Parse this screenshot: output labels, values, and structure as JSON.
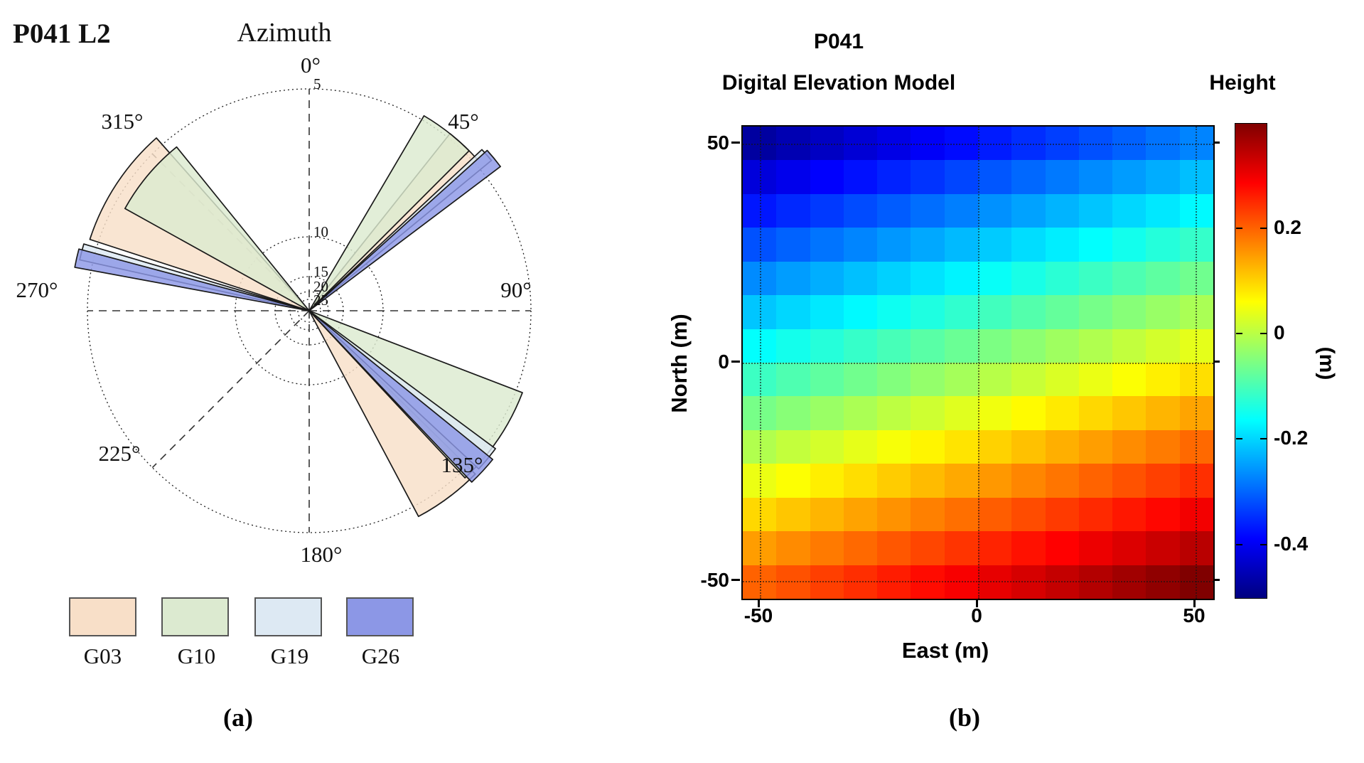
{
  "page": {
    "caption_a": "(a)",
    "caption_b": "(b)"
  },
  "panel_a": {
    "corner_label": "P041 L2",
    "title": "Azimuth",
    "azimuth_labels": [
      "0°",
      "45°",
      "90°",
      "135°",
      "180°",
      "225°",
      "270°",
      "315°"
    ],
    "radial_tick_labels": [
      "5",
      "10",
      "15",
      "20",
      "25"
    ],
    "legend": [
      {
        "label": "G03",
        "color": "#f8dfc8"
      },
      {
        "label": "G10",
        "color": "#dcead0"
      },
      {
        "label": "G19",
        "color": "#dde9f3"
      },
      {
        "label": "G26",
        "color": "#8c97e6"
      }
    ]
  },
  "panel_b": {
    "title_line1": "P041",
    "title_line2": "Digital Elevation Model",
    "colorbar_title": "Height",
    "colorbar_unit": "(m)",
    "xlabel": "East (m)",
    "ylabel": "North (m)",
    "x_tick_labels": [
      "-50",
      "0",
      "50"
    ],
    "y_tick_labels": [
      "50",
      "0",
      "-50"
    ],
    "colorbar_tick_labels": [
      "0.2",
      "0",
      "-0.2",
      "-0.4"
    ]
  },
  "chart_data": [
    {
      "id": "a",
      "type": "polar-sectors",
      "title": "Azimuth",
      "station": "P041 L2",
      "radial_rings": [
        {
          "value": 5,
          "radius_px": 312
        },
        {
          "value": 10,
          "radius_px": 104
        },
        {
          "value": 15,
          "radius_px": 48
        },
        {
          "value": 20,
          "radius_px": 27
        },
        {
          "value": 25,
          "radius_px": 16
        }
      ],
      "azimuth_ticks_deg": [
        0,
        45,
        90,
        135,
        180,
        225,
        270,
        315
      ],
      "series": [
        {
          "name": "G03",
          "color": "#f8dfc8",
          "sectors": [
            {
              "az_start": 288.0,
              "az_end": 318.5,
              "r_frac": 1.04
            },
            {
              "az_start": 38.5,
              "az_end": 48.0,
              "r_frac": 1.02
            },
            {
              "az_start": 134.5,
              "az_end": 152.0,
              "r_frac": 1.05
            }
          ]
        },
        {
          "name": "G10",
          "color": "#dcead0",
          "sectors": [
            {
              "az_start": 299.0,
              "az_end": 321.0,
              "r_frac": 0.95
            },
            {
              "az_start": 30.5,
              "az_end": 45.0,
              "r_frac": 1.02
            },
            {
              "az_start": 111.0,
              "az_end": 137.0,
              "r_frac": 1.03
            }
          ]
        },
        {
          "name": "G19",
          "color": "#dde9f3",
          "sectors": [
            {
              "az_start": 282.5,
              "az_end": 286.5,
              "r_frac": 1.06
            },
            {
              "az_start": 47.0,
              "az_end": 50.5,
              "r_frac": 1.065
            },
            {
              "az_start": 126.5,
              "az_end": 133.0,
              "r_frac": 1.045
            }
          ]
        },
        {
          "name": "G26",
          "color": "#8c97e6",
          "sectors": [
            {
              "az_start": 280.5,
              "az_end": 285.0,
              "r_frac": 1.075
            },
            {
              "az_start": 48.0,
              "az_end": 53.0,
              "r_frac": 1.08
            },
            {
              "az_start": 129.0,
              "az_end": 136.5,
              "r_frac": 1.065
            }
          ]
        }
      ]
    },
    {
      "id": "b",
      "type": "heatmap",
      "title": "P041 Digital Elevation Model",
      "xlabel": "East (m)",
      "ylabel": "North (m)",
      "x_range": [
        -54,
        54
      ],
      "y_range": [
        -54,
        54
      ],
      "x_ticks": [
        -50,
        0,
        50
      ],
      "y_ticks": [
        50,
        0,
        -50
      ],
      "grid_n": 14,
      "colormap": "jet",
      "color_scale": {
        "vmin": -0.5,
        "vmax": 0.4,
        "ticks": [
          0.2,
          0,
          -0.2,
          -0.4
        ],
        "label": "Height",
        "unit": "(m)"
      },
      "height_plane": {
        "h0": -0.035,
        "dh_dN": -0.0067,
        "dh_dE": 0.002,
        "corners_m": {
          "top_left": -0.47,
          "top_right": -0.27,
          "bottom_left": 0.2,
          "bottom_right": 0.4
        }
      }
    }
  ]
}
